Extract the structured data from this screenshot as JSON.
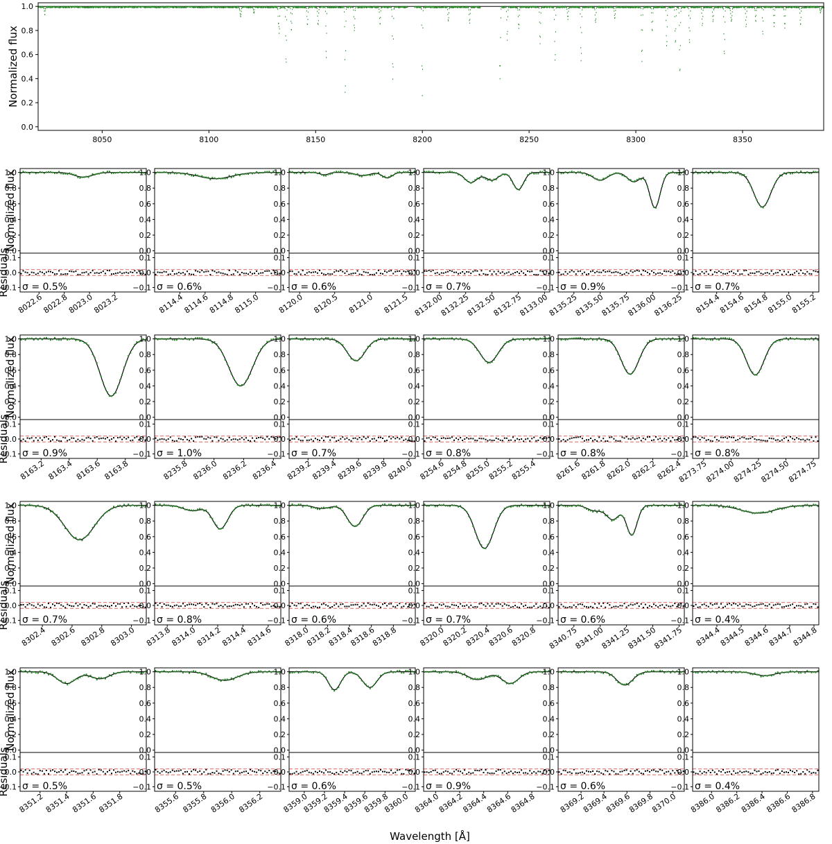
{
  "colors": {
    "model_line": "#000000",
    "observed_points": "#2a8a2a",
    "residual_points": "#000000",
    "sigma_lines": "#e06060",
    "frame": "#000000"
  },
  "labels": {
    "flux_ylabel": "Normalized flux",
    "residual_ylabel": "Residuals",
    "wavelength_xlabel": "Wavelength [Å]"
  },
  "chart_data": {
    "type": "scatter",
    "overview": {
      "xlim": [
        8020,
        8388
      ],
      "ylim": [
        -0.03,
        1.03
      ],
      "xticks": [
        "8050",
        "8100",
        "8150",
        "8200",
        "8250",
        "8300",
        "8350"
      ],
      "yticks": [
        "0.0",
        "0.2",
        "0.4",
        "0.6",
        "0.8",
        "1.0"
      ],
      "gaps": [
        [
          8193,
          8196
        ],
        [
          8227,
          8236
        ]
      ],
      "lines": [
        {
          "c": 8022.95,
          "d": 0.06,
          "w": 0.2
        },
        {
          "c": 8114.7,
          "d": 0.08,
          "w": 0.25
        },
        {
          "c": 8120.9,
          "d": 0.05,
          "w": 0.2
        },
        {
          "c": 8132.4,
          "d": 0.13,
          "w": 0.15
        },
        {
          "c": 8132.8,
          "d": 0.22,
          "w": 0.15
        },
        {
          "c": 8136.0,
          "d": 0.47,
          "w": 0.18
        },
        {
          "c": 8138.5,
          "d": 0.2,
          "w": 0.2
        },
        {
          "c": 8146.0,
          "d": 0.15,
          "w": 0.2
        },
        {
          "c": 8151.0,
          "d": 0.15,
          "w": 0.2
        },
        {
          "c": 8154.8,
          "d": 0.44,
          "w": 0.15
        },
        {
          "c": 8163.7,
          "d": 0.73,
          "w": 0.18
        },
        {
          "c": 8168.0,
          "d": 0.2,
          "w": 0.2
        },
        {
          "c": 8180.0,
          "d": 0.15,
          "w": 0.2
        },
        {
          "c": 8186.0,
          "d": 0.6,
          "w": 0.2
        },
        {
          "c": 8199.8,
          "d": 0.74,
          "w": 0.15
        },
        {
          "c": 8212.0,
          "d": 0.12,
          "w": 0.2
        },
        {
          "c": 8222.0,
          "d": 0.13,
          "w": 0.2
        },
        {
          "c": 8236.2,
          "d": 0.6,
          "w": 0.2
        },
        {
          "c": 8239.6,
          "d": 0.28,
          "w": 0.18
        },
        {
          "c": 8245.0,
          "d": 0.18,
          "w": 0.2
        },
        {
          "c": 8255.0,
          "d": 0.3,
          "w": 0.2
        },
        {
          "c": 8262.0,
          "d": 0.45,
          "w": 0.18
        },
        {
          "c": 8268.0,
          "d": 0.1,
          "w": 0.2
        },
        {
          "c": 8274.2,
          "d": 0.45,
          "w": 0.2
        },
        {
          "c": 8281.0,
          "d": 0.13,
          "w": 0.2
        },
        {
          "c": 8290.0,
          "d": 0.1,
          "w": 0.2
        },
        {
          "c": 8302.7,
          "d": 0.45,
          "w": 0.2
        },
        {
          "c": 8307.5,
          "d": 0.2,
          "w": 0.2
        },
        {
          "c": 8314.3,
          "d": 0.33,
          "w": 0.2
        },
        {
          "c": 8318.4,
          "d": 0.3,
          "w": 0.2
        },
        {
          "c": 8320.5,
          "d": 0.55,
          "w": 0.2
        },
        {
          "c": 8325.0,
          "d": 0.3,
          "w": 0.2
        },
        {
          "c": 8331.0,
          "d": 0.15,
          "w": 0.2
        },
        {
          "c": 8336.0,
          "d": 0.12,
          "w": 0.2
        },
        {
          "c": 8341.3,
          "d": 0.4,
          "w": 0.2
        },
        {
          "c": 8344.6,
          "d": 0.12,
          "w": 0.3
        },
        {
          "c": 8351.5,
          "d": 0.16,
          "w": 0.2
        },
        {
          "c": 8356.0,
          "d": 0.12,
          "w": 0.2
        },
        {
          "c": 8359.3,
          "d": 0.24,
          "w": 0.15
        },
        {
          "c": 8364.6,
          "d": 0.16,
          "w": 0.2
        },
        {
          "c": 8369.6,
          "d": 0.17,
          "w": 0.2
        },
        {
          "c": 8377.0,
          "d": 0.15,
          "w": 0.2
        },
        {
          "c": 8386.4,
          "d": 0.05,
          "w": 0.2
        }
      ]
    },
    "panel_ylim": [
      -0.03,
      1.05
    ],
    "panel_yticks": [
      "0.0",
      "0.2",
      "0.4",
      "0.6",
      "0.8",
      "1.0"
    ],
    "residual_ylim": [
      -0.13,
      0.13
    ],
    "residual_yticks": [
      "0.1",
      "0.0",
      "−0.1"
    ],
    "residual_ytick_values": [
      0.1,
      0.0,
      -0.1
    ],
    "sigma_band": 0.02,
    "panels": [
      {
        "xlim": [
          8022.45,
          8023.45
        ],
        "ticks": [
          "8022.6",
          "8022.8",
          "8023.0",
          "8023.2"
        ],
        "tickv": [
          8022.6,
          8022.8,
          8023.0,
          8023.2
        ],
        "sigma": "σ = 0.5%",
        "lines": [
          {
            "c": 8022.95,
            "d": 0.06,
            "w": 0.07
          }
        ]
      },
      {
        "xlim": [
          8114.2,
          8115.2
        ],
        "ticks": [
          "8114.4",
          "8114.6",
          "8114.8",
          "8115.0"
        ],
        "tickv": [
          8114.4,
          8114.6,
          8114.8,
          8115.0
        ],
        "sigma": "σ = 0.6%",
        "lines": [
          {
            "c": 8114.68,
            "d": 0.08,
            "w": 0.13
          }
        ]
      },
      {
        "xlim": [
          8119.85,
          8121.65
        ],
        "ticks": [
          "8120.0",
          "8120.5",
          "8121.0",
          "8121.5"
        ],
        "tickv": [
          8120.0,
          8120.5,
          8121.0,
          8121.5
        ],
        "sigma": "σ = 0.6%",
        "lines": [
          {
            "c": 8120.35,
            "d": 0.03,
            "w": 0.06
          },
          {
            "c": 8120.9,
            "d": 0.04,
            "w": 0.1
          },
          {
            "c": 8121.25,
            "d": 0.07,
            "w": 0.07
          }
        ]
      },
      {
        "xlim": [
          8131.85,
          8133.05
        ],
        "ticks": [
          "8132.00",
          "8132.25",
          "8132.50",
          "8132.75",
          "8133.00"
        ],
        "tickv": [
          8132.0,
          8132.25,
          8132.5,
          8132.75,
          8133.0
        ],
        "sigma": "σ = 0.7%",
        "lines": [
          {
            "c": 8132.3,
            "d": 0.13,
            "w": 0.06
          },
          {
            "c": 8132.5,
            "d": 0.1,
            "w": 0.06
          },
          {
            "c": 8132.75,
            "d": 0.22,
            "w": 0.05
          }
        ]
      },
      {
        "xlim": [
          8135.1,
          8136.3
        ],
        "ticks": [
          "8135.25",
          "8135.50",
          "8135.75",
          "8136.00",
          "8136.25"
        ],
        "tickv": [
          8135.25,
          8135.5,
          8135.75,
          8136.0,
          8136.25
        ],
        "sigma": "σ = 0.9%",
        "lines": [
          {
            "c": 8135.5,
            "d": 0.1,
            "w": 0.07
          },
          {
            "c": 8135.82,
            "d": 0.12,
            "w": 0.06
          },
          {
            "c": 8136.02,
            "d": 0.45,
            "w": 0.05
          }
        ]
      },
      {
        "xlim": [
          8154.2,
          8155.25
        ],
        "ticks": [
          "8154.4",
          "8154.6",
          "8154.8",
          "8155.0",
          "8155.2"
        ],
        "tickv": [
          8154.4,
          8154.6,
          8154.8,
          8155.0,
          8155.2
        ],
        "sigma": "σ = 0.7%",
        "lines": [
          {
            "c": 8154.78,
            "d": 0.44,
            "w": 0.07
          }
        ]
      },
      {
        "xlim": [
          8163.05,
          8163.95
        ],
        "ticks": [
          "8163.2",
          "8163.4",
          "8163.6",
          "8163.8"
        ],
        "tickv": [
          8163.2,
          8163.4,
          8163.6,
          8163.8
        ],
        "sigma": "σ = 0.9%",
        "lines": [
          {
            "c": 8163.7,
            "d": 0.73,
            "w": 0.08
          }
        ]
      },
      {
        "xlim": [
          8235.6,
          8236.45
        ],
        "ticks": [
          "8235.8",
          "8236.0",
          "8236.2",
          "8236.4"
        ],
        "tickv": [
          8235.8,
          8236.0,
          8236.2,
          8236.4
        ],
        "sigma": "σ = 1.0%",
        "lines": [
          {
            "c": 8236.18,
            "d": 0.6,
            "w": 0.08
          }
        ]
      },
      {
        "xlim": [
          8239.05,
          8240.05
        ],
        "ticks": [
          "8239.2",
          "8239.4",
          "8239.6",
          "8239.8",
          "8240.0"
        ],
        "tickv": [
          8239.2,
          8239.4,
          8239.6,
          8239.8,
          8240.0
        ],
        "sigma": "σ = 0.7%",
        "lines": [
          {
            "c": 8239.58,
            "d": 0.28,
            "w": 0.07
          }
        ]
      },
      {
        "xlim": [
          8254.45,
          8255.55
        ],
        "ticks": [
          "8254.6",
          "8254.8",
          "8255.0",
          "8255.2",
          "8255.4"
        ],
        "tickv": [
          8254.6,
          8254.8,
          8255.0,
          8255.2,
          8255.4
        ],
        "sigma": "σ = 0.8%",
        "lines": [
          {
            "c": 8255.02,
            "d": 0.3,
            "w": 0.08
          }
        ]
      },
      {
        "xlim": [
          8261.45,
          8262.45
        ],
        "ticks": [
          "8261.6",
          "8261.8",
          "8262.0",
          "8262.2",
          "8262.4"
        ],
        "tickv": [
          8261.6,
          8261.8,
          8262.0,
          8262.2,
          8262.4
        ],
        "sigma": "σ = 0.8%",
        "lines": [
          {
            "c": 8262.02,
            "d": 0.45,
            "w": 0.07
          }
        ]
      },
      {
        "xlim": [
          8273.65,
          8274.8
        ],
        "ticks": [
          "8273.75",
          "8274.00",
          "8274.25",
          "8274.50",
          "8274.75"
        ],
        "tickv": [
          8273.75,
          8274.0,
          8274.25,
          8274.5,
          8274.75
        ],
        "sigma": "σ = 0.8%",
        "lines": [
          {
            "c": 8274.22,
            "d": 0.46,
            "w": 0.08
          }
        ]
      },
      {
        "xlim": [
          8302.25,
          8303.1
        ],
        "ticks": [
          "8302.4",
          "8302.6",
          "8302.8",
          "8303.0"
        ],
        "tickv": [
          8302.4,
          8302.6,
          8302.8,
          8303.0
        ],
        "sigma": "σ = 0.7%",
        "lines": [
          {
            "c": 8302.65,
            "d": 0.44,
            "w": 0.1
          }
        ]
      },
      {
        "xlim": [
          8313.7,
          8314.7
        ],
        "ticks": [
          "8313.8",
          "8314.0",
          "8314.2",
          "8314.4",
          "8314.6"
        ],
        "tickv": [
          8313.8,
          8314.0,
          8314.2,
          8314.4,
          8314.6
        ],
        "sigma": "σ = 0.8%",
        "lines": [
          {
            "c": 8314.0,
            "d": 0.07,
            "w": 0.07
          },
          {
            "c": 8314.22,
            "d": 0.3,
            "w": 0.06
          }
        ]
      },
      {
        "xlim": [
          8317.85,
          8319.0
        ],
        "ticks": [
          "8318.0",
          "8318.2",
          "8318.4",
          "8318.6",
          "8318.8"
        ],
        "tickv": [
          8318.0,
          8318.2,
          8318.4,
          8318.6,
          8318.8
        ],
        "sigma": "σ = 0.6%",
        "lines": [
          {
            "c": 8318.15,
            "d": 0.04,
            "w": 0.07
          },
          {
            "c": 8318.45,
            "d": 0.27,
            "w": 0.07
          }
        ]
      },
      {
        "xlim": [
          8319.85,
          8320.95
        ],
        "ticks": [
          "8320.0",
          "8320.2",
          "8320.4",
          "8320.6",
          "8320.8"
        ],
        "tickv": [
          8320.0,
          8320.2,
          8320.4,
          8320.6,
          8320.8
        ],
        "sigma": "σ = 0.7%",
        "lines": [
          {
            "c": 8320.38,
            "d": 0.55,
            "w": 0.08
          }
        ]
      },
      {
        "xlim": [
          8340.6,
          8341.8
        ],
        "ticks": [
          "8340.75",
          "8341.00",
          "8341.25",
          "8341.50",
          "8341.75"
        ],
        "tickv": [
          8340.75,
          8341.0,
          8341.25,
          8341.5,
          8341.75
        ],
        "sigma": "σ = 0.6%",
        "lines": [
          {
            "c": 8340.95,
            "d": 0.07,
            "w": 0.07
          },
          {
            "c": 8341.12,
            "d": 0.18,
            "w": 0.06
          },
          {
            "c": 8341.3,
            "d": 0.38,
            "w": 0.05
          }
        ]
      },
      {
        "xlim": [
          8344.3,
          8344.82
        ],
        "ticks": [
          "8344.4",
          "8344.5",
          "8344.6",
          "8344.7",
          "8344.8"
        ],
        "tickv": [
          8344.4,
          8344.5,
          8344.6,
          8344.7,
          8344.8
        ],
        "sigma": "σ = 0.4%",
        "lines": [
          {
            "c": 8344.57,
            "d": 0.1,
            "w": 0.07
          }
        ]
      },
      {
        "xlim": [
          8351.05,
          8352.0
        ],
        "ticks": [
          "8351.2",
          "8351.4",
          "8351.6",
          "8351.8"
        ],
        "tickv": [
          8351.2,
          8351.4,
          8351.6,
          8351.8
        ],
        "sigma": "σ = 0.5%",
        "lines": [
          {
            "c": 8351.4,
            "d": 0.15,
            "w": 0.07
          },
          {
            "c": 8351.65,
            "d": 0.09,
            "w": 0.07
          }
        ]
      },
      {
        "xlim": [
          8355.45,
          8356.35
        ],
        "ticks": [
          "8355.6",
          "8355.8",
          "8356.0",
          "8356.2"
        ],
        "tickv": [
          8355.6,
          8355.8,
          8356.0,
          8356.2
        ],
        "sigma": "σ = 0.5%",
        "lines": [
          {
            "c": 8355.95,
            "d": 0.11,
            "w": 0.09
          }
        ]
      },
      {
        "xlim": [
          8358.85,
          8360.1
        ],
        "ticks": [
          "8359.0",
          "8359.2",
          "8359.4",
          "8359.6",
          "8359.8",
          "8360.0"
        ],
        "tickv": [
          8359.0,
          8359.2,
          8359.4,
          8359.6,
          8359.8,
          8360.0
        ],
        "sigma": "σ = 0.6%",
        "lines": [
          {
            "c": 8359.3,
            "d": 0.23,
            "w": 0.06
          },
          {
            "c": 8359.65,
            "d": 0.2,
            "w": 0.07
          }
        ]
      },
      {
        "xlim": [
          8363.9,
          8364.95
        ],
        "ticks": [
          "8364.0",
          "8364.2",
          "8364.4",
          "8364.6",
          "8364.8"
        ],
        "tickv": [
          8364.0,
          8364.2,
          8364.4,
          8364.6,
          8364.8
        ],
        "sigma": "σ = 0.9%",
        "lines": [
          {
            "c": 8364.35,
            "d": 0.1,
            "w": 0.08
          },
          {
            "c": 8364.62,
            "d": 0.15,
            "w": 0.07
          }
        ]
      },
      {
        "xlim": [
          8369.0,
          8370.1
        ],
        "ticks": [
          "8369.2",
          "8369.4",
          "8369.6",
          "8369.8",
          "8370.0"
        ],
        "tickv": [
          8369.2,
          8369.4,
          8369.6,
          8369.8,
          8370.0
        ],
        "sigma": "σ = 0.6%",
        "lines": [
          {
            "c": 8369.58,
            "d": 0.17,
            "w": 0.07
          }
        ]
      },
      {
        "xlim": [
          8385.85,
          8386.85
        ],
        "ticks": [
          "8386.0",
          "8386.2",
          "8386.4",
          "8386.6",
          "8386.8"
        ],
        "tickv": [
          8386.0,
          8386.2,
          8386.4,
          8386.6,
          8386.8
        ],
        "sigma": "σ = 0.4%",
        "lines": [
          {
            "c": 8386.42,
            "d": 0.05,
            "w": 0.08
          }
        ]
      }
    ]
  }
}
